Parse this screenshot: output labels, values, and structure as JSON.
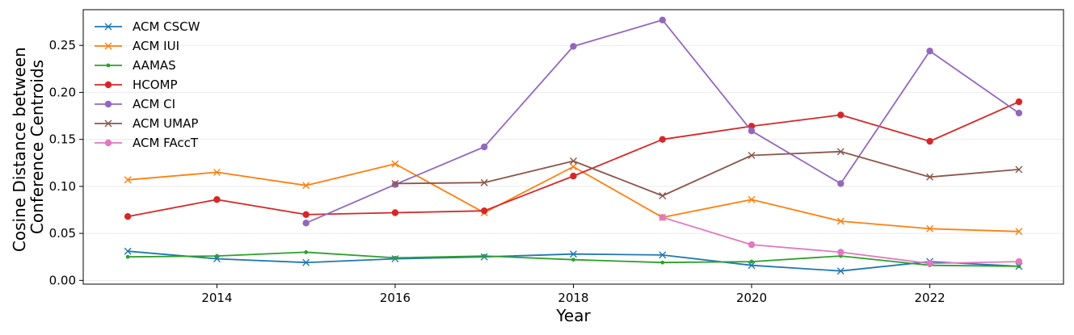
{
  "chart_data": {
    "type": "line",
    "title": "",
    "xlabel": "Year",
    "ylabel_lines": [
      "Cosine Distance between",
      "Conference Centroids"
    ],
    "xlim": [
      2012.5,
      2023.5
    ],
    "ylim": [
      -0.004,
      0.288
    ],
    "x_ticks": [
      2014,
      2016,
      2018,
      2020,
      2022
    ],
    "y_ticks": [
      0.0,
      0.05,
      0.1,
      0.15,
      0.2,
      0.25
    ],
    "y_tick_labels": [
      "0.00",
      "0.05",
      "0.10",
      "0.15",
      "0.20",
      "0.25"
    ],
    "grid": "horizontal",
    "legend_position": "top-left",
    "series": [
      {
        "name": "ACM CSCW",
        "color": "#1f77b4",
        "marker": "x",
        "x": [
          2013,
          2014,
          2015,
          2016,
          2017,
          2018,
          2019,
          2020,
          2021,
          2022,
          2023
        ],
        "values": [
          0.031,
          0.023,
          0.019,
          0.023,
          0.025,
          0.028,
          0.027,
          0.016,
          0.01,
          0.02,
          0.015
        ]
      },
      {
        "name": "ACM IUI",
        "color": "#ff7f0e",
        "marker": "x",
        "x": [
          2013,
          2014,
          2015,
          2016,
          2017,
          2018,
          2019,
          2020,
          2021,
          2022,
          2023
        ],
        "values": [
          0.107,
          0.115,
          0.101,
          0.124,
          0.072,
          0.121,
          0.067,
          0.086,
          0.063,
          0.055,
          0.052
        ]
      },
      {
        "name": "AAMAS",
        "color": "#2ca02c",
        "marker": "dot",
        "x": [
          2013,
          2014,
          2015,
          2016,
          2017,
          2018,
          2019,
          2020,
          2021,
          2022,
          2023
        ],
        "values": [
          0.025,
          0.026,
          0.03,
          0.024,
          0.026,
          0.022,
          0.019,
          0.02,
          0.026,
          0.016,
          0.015
        ]
      },
      {
        "name": "HCOMP",
        "color": "#d62728",
        "marker": "circle",
        "x": [
          2013,
          2014,
          2015,
          2016,
          2017,
          2018,
          2019,
          2020,
          2021,
          2022,
          2023
        ],
        "values": [
          0.068,
          0.086,
          0.07,
          0.072,
          0.074,
          0.111,
          0.15,
          0.164,
          0.176,
          0.148,
          0.19
        ]
      },
      {
        "name": "ACM CI",
        "color": "#9467bd",
        "marker": "circle",
        "x": [
          2015,
          2016,
          2017,
          2018,
          2019,
          2020,
          2021,
          2022,
          2023
        ],
        "values": [
          0.061,
          0.102,
          0.142,
          0.249,
          0.277,
          0.159,
          0.103,
          0.244,
          0.178
        ]
      },
      {
        "name": "ACM UMAP",
        "color": "#8c564b",
        "marker": "x",
        "x": [
          2016,
          2017,
          2018,
          2019,
          2020,
          2021,
          2022,
          2023
        ],
        "values": [
          0.103,
          0.104,
          0.127,
          0.09,
          0.133,
          0.137,
          0.11,
          0.118
        ]
      },
      {
        "name": "ACM FAccT",
        "color": "#e377c2",
        "marker": "circle",
        "x": [
          2019,
          2020,
          2021,
          2022,
          2023
        ],
        "values": [
          0.067,
          0.038,
          0.03,
          0.018,
          0.02
        ]
      }
    ]
  }
}
